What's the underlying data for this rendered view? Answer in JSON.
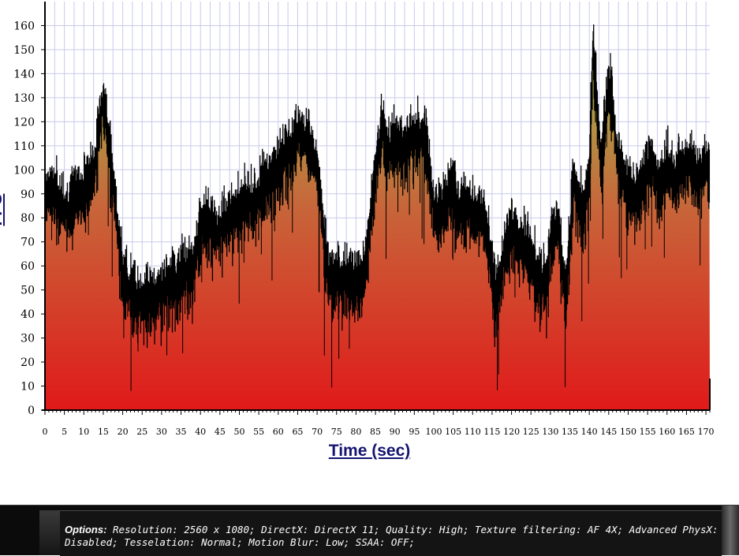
{
  "chart_data": {
    "type": "area",
    "title": "",
    "xlabel": "Time (sec)",
    "ylabel": "FPS",
    "xlim": [
      0,
      171
    ],
    "ylim": [
      0,
      170
    ],
    "x_ticks": [
      0,
      5,
      10,
      15,
      20,
      25,
      30,
      35,
      40,
      45,
      50,
      55,
      60,
      65,
      70,
      75,
      80,
      85,
      90,
      95,
      100,
      105,
      110,
      115,
      120,
      125,
      130,
      135,
      140,
      145,
      150,
      155,
      160,
      165,
      170
    ],
    "y_ticks": [
      0,
      10,
      20,
      30,
      40,
      50,
      60,
      70,
      80,
      90,
      100,
      110,
      120,
      130,
      140,
      150,
      160
    ],
    "grid": true,
    "fill_gradient": [
      "#9bc04e",
      "#e01a1a"
    ],
    "line_color": "#000000",
    "series": [
      {
        "x": [
          0,
          2,
          4,
          6,
          8,
          10,
          12,
          13,
          14,
          15,
          16,
          17,
          18,
          19,
          20,
          21,
          22,
          24,
          26,
          28,
          30,
          32,
          34,
          36,
          38,
          40,
          41,
          42,
          44,
          46,
          48,
          50,
          52,
          54,
          56,
          58,
          60,
          62,
          64,
          65,
          66,
          68,
          69,
          70,
          71,
          72,
          73,
          74,
          76,
          78,
          80,
          82,
          83,
          84,
          85,
          86,
          87,
          88,
          90,
          92,
          94,
          96,
          98,
          99,
          100,
          102,
          104,
          105,
          106,
          108,
          110,
          112,
          114,
          115,
          116,
          118,
          120,
          122,
          124,
          126,
          128,
          129,
          130,
          132,
          133,
          134,
          135,
          136,
          137,
          138,
          139,
          140,
          141,
          142,
          143,
          144,
          145,
          146,
          147,
          148,
          150,
          152,
          154,
          156,
          158,
          160,
          162,
          164,
          166,
          168,
          170,
          171
        ],
        "y": [
          92,
          95,
          88,
          86,
          92,
          93,
          100,
          104,
          120,
          132,
          120,
          105,
          90,
          72,
          58,
          55,
          52,
          48,
          50,
          49,
          52,
          54,
          57,
          60,
          59,
          77,
          80,
          80,
          76,
          80,
          83,
          86,
          89,
          90,
          94,
          99,
          103,
          109,
          114,
          118,
          117,
          114,
          110,
          102,
          90,
          70,
          58,
          57,
          56,
          56,
          54,
          58,
          70,
          88,
          100,
          113,
          120,
          108,
          114,
          110,
          115,
          117,
          113,
          100,
          86,
          84,
          93,
          95,
          85,
          89,
          83,
          85,
          73,
          58,
          48,
          66,
          78,
          72,
          70,
          62,
          55,
          53,
          74,
          80,
          62,
          50,
          74,
          100,
          92,
          86,
          90,
          100,
          155,
          130,
          103,
          120,
          138,
          130,
          110,
          104,
          95,
          90,
          97,
          106,
          94,
          104,
          100,
          104,
          105,
          100,
          104,
          104
        ]
      }
    ]
  },
  "footer": {
    "options_label": "Options:",
    "options_text": " Resolution: 2560 x 1080; DirectX: DirectX 11; Quality: High; Texture filtering: AF 4X; Advanced PhysX: Disabled; Tesselation: Normal; Motion Blur: Low; SSAA: OFF;"
  }
}
